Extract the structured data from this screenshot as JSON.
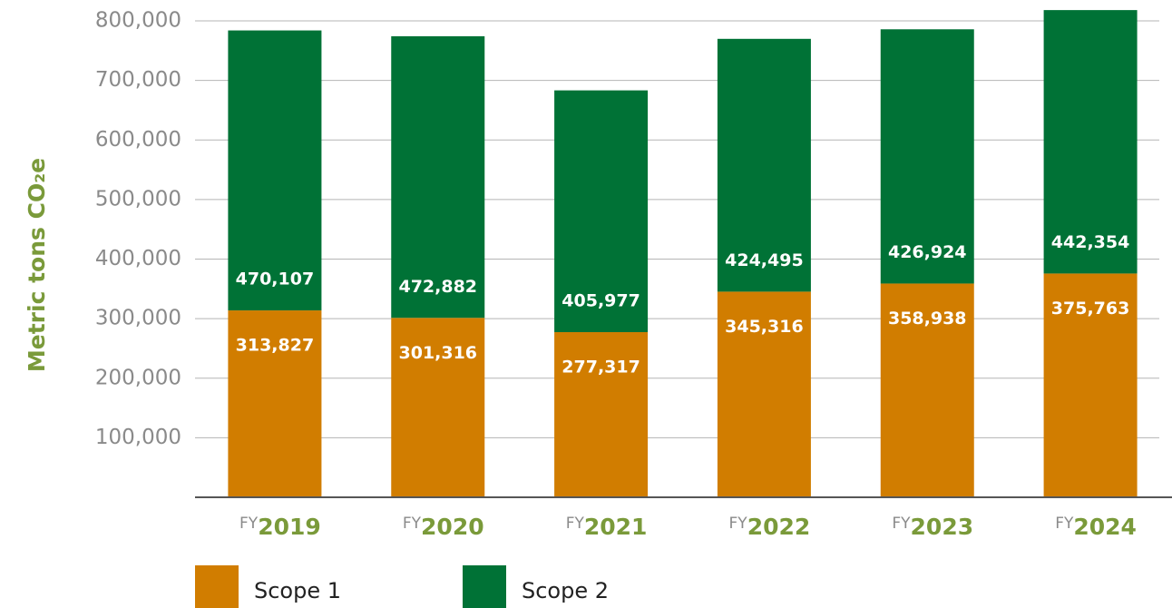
{
  "chart_data": {
    "type": "stacked_bar",
    "y_label": "Metric tons CO₂e",
    "x_prefix": "FY",
    "categories": [
      "2019",
      "2020",
      "2021",
      "2022",
      "2023",
      "2024"
    ],
    "series": [
      {
        "name": "Scope 1",
        "color": "#d17d00",
        "values": [
          313827,
          301316,
          277317,
          345316,
          358938,
          375763
        ],
        "value_labels": [
          "313,827",
          "301,316",
          "277,317",
          "345,316",
          "358,938",
          "375,763"
        ]
      },
      {
        "name": "Scope 2",
        "color": "#007236",
        "values": [
          470107,
          472882,
          405977,
          424495,
          426924,
          442354
        ],
        "value_labels": [
          "470,107",
          "472,882",
          "405,977",
          "424,495",
          "426,924",
          "442,354"
        ]
      }
    ],
    "ylim": [
      0,
      800000
    ],
    "yticks": [
      {
        "value": 100000,
        "label": "100,000"
      },
      {
        "value": 200000,
        "label": "200,000"
      },
      {
        "value": 300000,
        "label": "300,000"
      },
      {
        "value": 400000,
        "label": "400,000"
      },
      {
        "value": 500000,
        "label": "500,000"
      },
      {
        "value": 600000,
        "label": "600,000"
      },
      {
        "value": 700000,
        "label": "700,000"
      },
      {
        "value": 800000,
        "label": "800,000"
      }
    ],
    "grid": true,
    "legend": "bottom-left"
  }
}
